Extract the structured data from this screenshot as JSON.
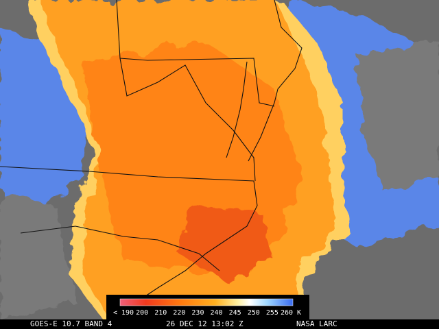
{
  "legend": {
    "labels": [
      "< 190",
      "200",
      "210",
      "220",
      "230",
      "240",
      "245",
      "250",
      "255",
      "260 K"
    ]
  },
  "footer": {
    "satellite": "GOES-E 10.7 BAND 4",
    "time": "26 DEC 12 13:02 Z",
    "source": "NASA LARC"
  }
}
